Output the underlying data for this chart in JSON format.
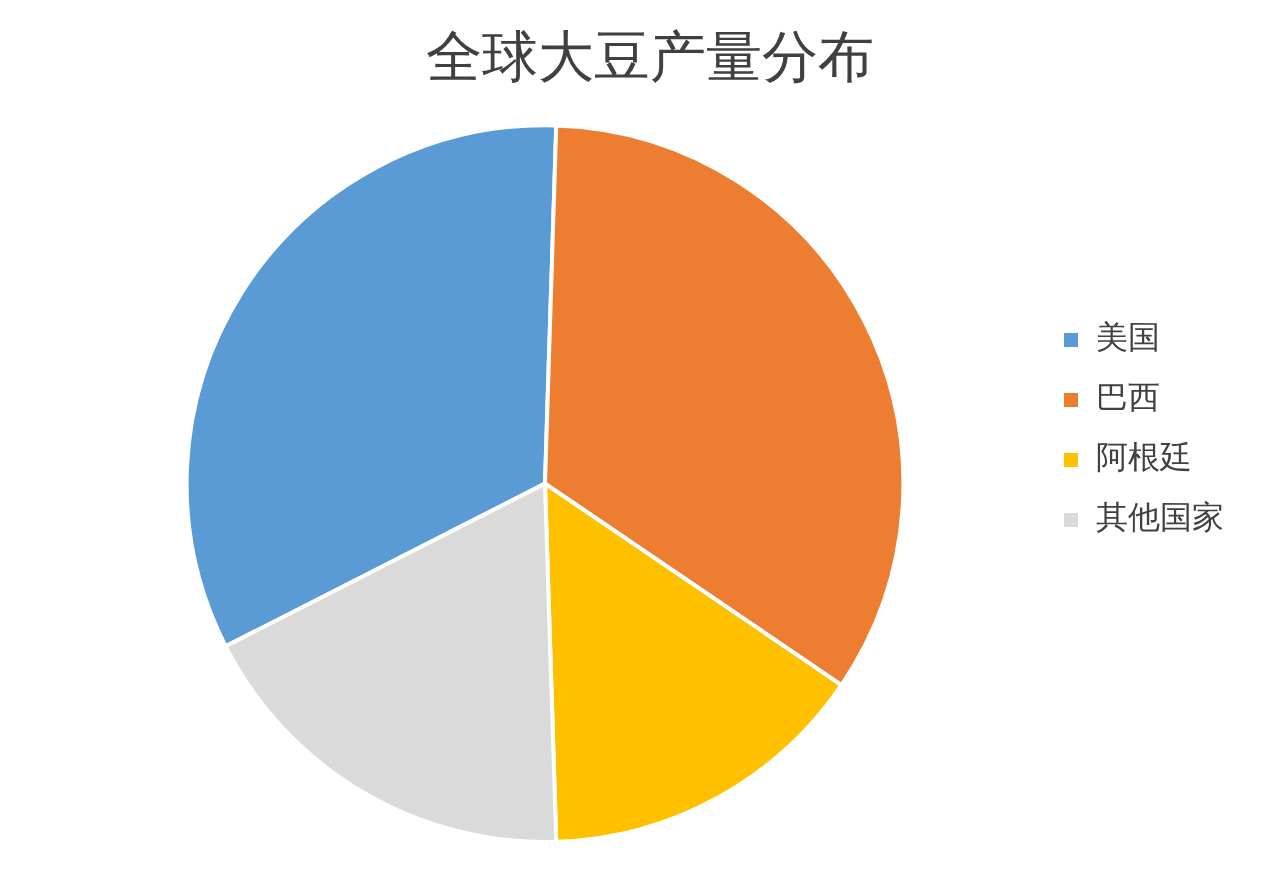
{
  "chart_data": {
    "type": "pie",
    "title": "全球大豆产量分布",
    "categories": [
      "美国",
      "巴西",
      "阿根廷",
      "其他国家"
    ],
    "values": [
      33,
      34,
      15,
      18
    ],
    "colors": [
      "#5b9bd5",
      "#ed7d31",
      "#ffc000",
      "#dadada"
    ],
    "legend": "right"
  }
}
